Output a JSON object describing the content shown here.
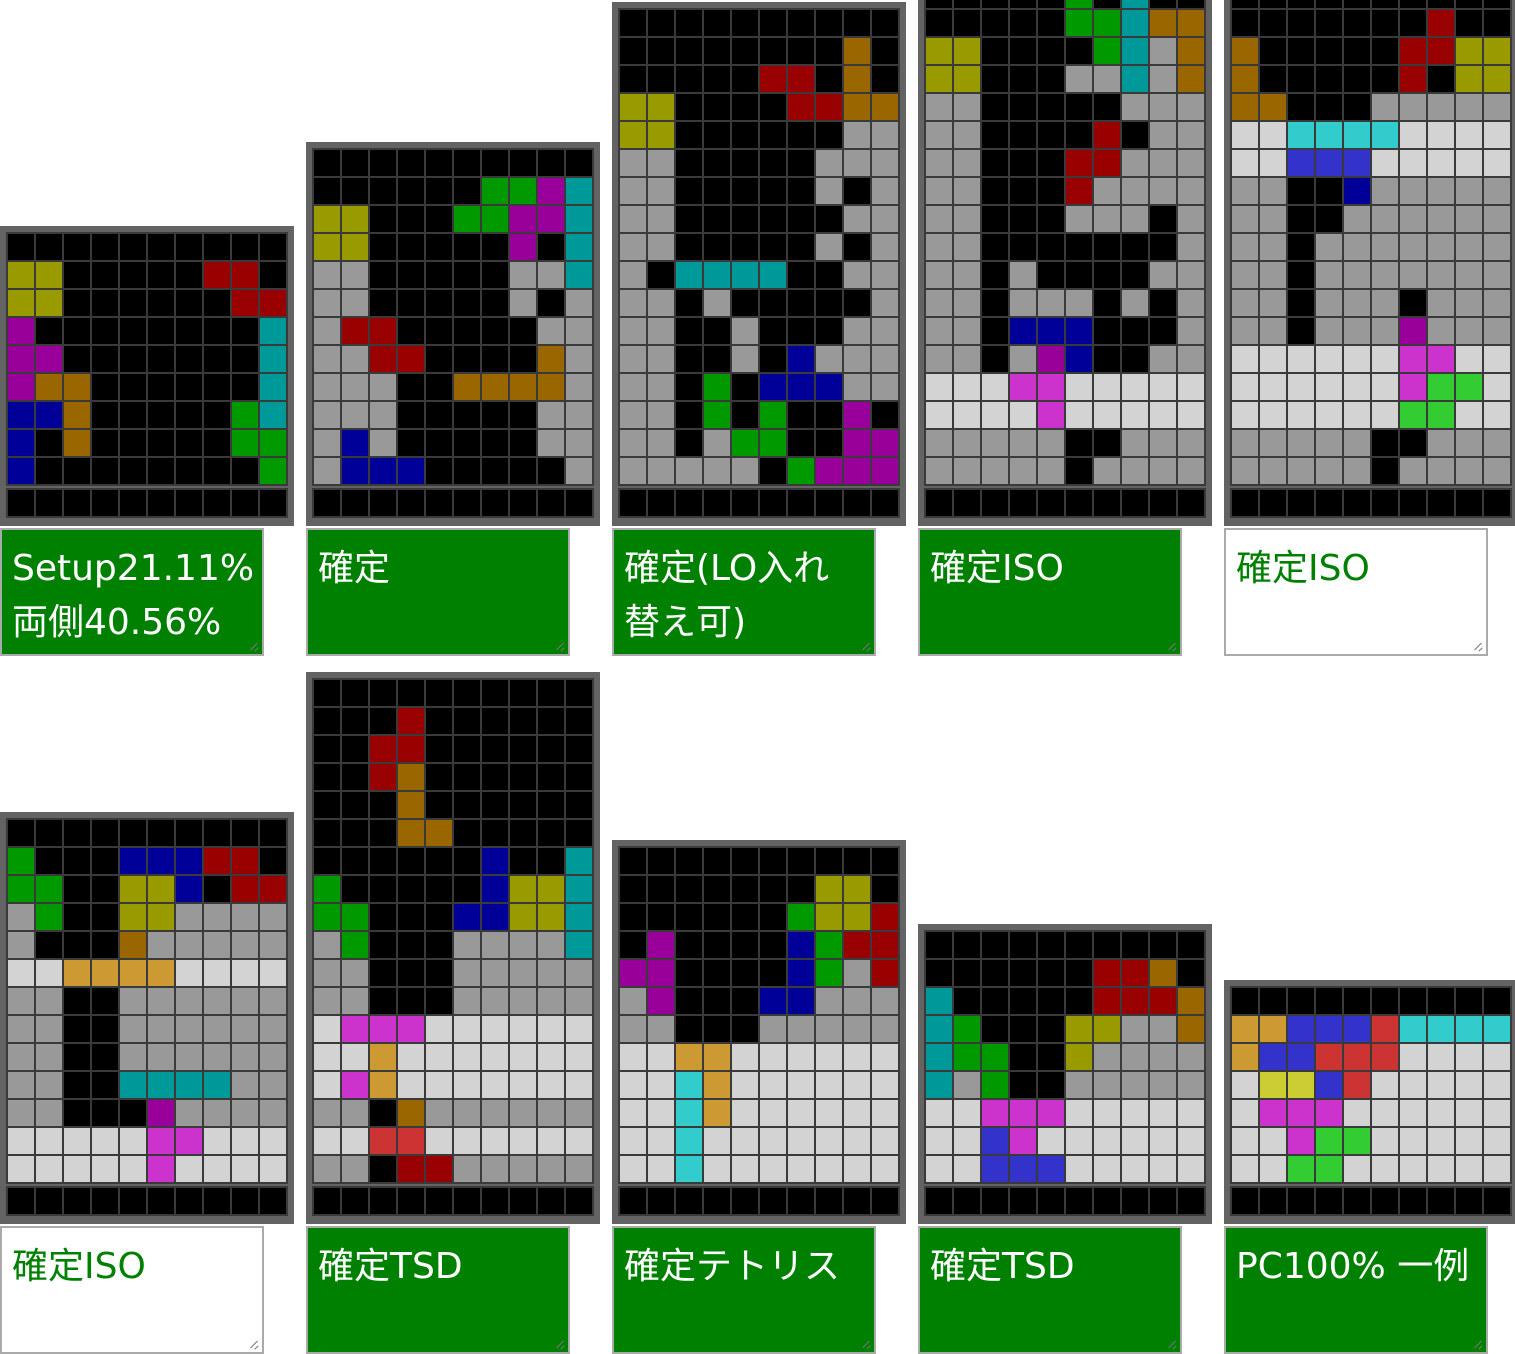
{
  "colors": {
    "_": "#000000",
    "G": "#999999",
    "W": "#d3d3d3",
    "Y": "#999900",
    "R": "#990000",
    "C": "#009999",
    "P": "#990099",
    "B": "#000099",
    "O": "#996600",
    "N": "#009900",
    "m": "#cc33cc",
    "b": "#3333cc",
    "o": "#cc9933",
    "c": "#33cccc",
    "y": "#cccc33",
    "r": "#cc3333",
    "n": "#33cc33"
  },
  "cells": [
    {
      "comment": "Setup21.11%\n両側40.56%",
      "style": "green",
      "rows": [
        "__________",
        "YY_____RR_",
        "YY______RR",
        "P________C",
        "PP_______C",
        "POO______C",
        "BBO_____NC",
        "B_O_____NN",
        "B________N"
      ]
    },
    {
      "comment": "確定",
      "style": "green",
      "rows": [
        "__________",
        "______NNPC",
        "YY___NNPPC",
        "YY_____P_C",
        "GG_____GGC",
        "GG_____G_G",
        "GRR_____GG",
        "GGRR____OG",
        "GGG__OOOOG",
        "GGG_____GG",
        "GBG_____GG",
        "GBBB_____G"
      ]
    },
    {
      "comment": "確定(LO入れ\n替え可)",
      "style": "green",
      "rows": [
        "__________",
        "________O_",
        "_____RR_O_",
        "YY____RROO",
        "YY______GG",
        "GG_____GGG",
        "GG_____G_G",
        "GG______GG",
        "GG_____G_G",
        "G_CCCC__GG",
        "GG_G_____G",
        "GG__G___GG",
        "GG__G_BGGG",
        "GG_N_BBBGG",
        "GG_N_N__P_",
        "GG_GNN__PP",
        "GGGGG_NPPP"
      ]
    },
    {
      "comment": "確定ISO",
      "style": "green",
      "rows": [
        "__________",
        "_____N_C__",
        "_____NNCOO",
        "YY____NCGO",
        "YY___GGCGO",
        "GG_____GGG",
        "GG____R_GG",
        "GG___RRGGG",
        "GG___RGGGG",
        "GG___GGG_G",
        "GG_______G",
        "GG_G____GG",
        "GG_GGG_G_G",
        "GG_BBB___G",
        "GG_GPB__GG",
        "WWWmmWWWWW",
        "WWWWmWWWWW",
        "GGGGG__GGG",
        "GGGGG_GGGG"
      ]
    },
    {
      "comment": "確定ISO",
      "style": "white",
      "rows": [
        "__________",
        "_______R__",
        "O_____RRYY",
        "O_____R_YY",
        "OO___GGGGG",
        "WWccccWWWW",
        "WWbbbWWWWW",
        "GG__BGGGGG",
        "GG__GGGGGG",
        "GG_GGGGGGG",
        "GG_GGGGGGG",
        "GG_GGG_GGG",
        "GG_GGGPGGG",
        "WWWWWWmmWW",
        "WWWWWWmnnW",
        "WWWWWWnnWW",
        "GGGGG__GGG",
        "GGGGG_GGGG"
      ]
    },
    {
      "comment": "確定ISO",
      "style": "white",
      "rows": [
        "__________",
        "N___BBBRR_",
        "NN__YYB_RR",
        "GN__YYGGGG",
        "G___OGGGGG",
        "WWooooWWWW",
        "GG__GGGGGG",
        "GG__GGGGGG",
        "GG__GGGGGG",
        "GG__CCCCGG",
        "GG___PGGGG",
        "WWWWWmmWWW",
        "WWWWWmWWWW"
      ]
    },
    {
      "comment": "確定TSD",
      "style": "green",
      "rows": [
        "__________",
        "___R______",
        "__RR______",
        "__RO______",
        "___O______",
        "___OO_____",
        "______B__C",
        "N_____BYYC",
        "NN___BBYYC",
        "GN___GGGGC",
        "GG___GGGGG",
        "GG___GGGGG",
        "WmmmWWWWWW",
        "WWoWWWWWWW",
        "WmoWWWWWWW",
        "GG_OGGGGGG",
        "WWrrWWWWWW",
        "GG_RRGGGGG"
      ]
    },
    {
      "comment": "確定テトリス",
      "style": "green",
      "rows": [
        "__________",
        "_______YY_",
        "______NYYR",
        "_P____BNRR",
        "PP____BNGR",
        "GP___BBGGG",
        "GG___GGGGG",
        "WWooWWWWWW",
        "WWcoWWWWWW",
        "WWcoWWWWWW",
        "WWcWWWWWWW",
        "WWcWWWWWWW"
      ]
    },
    {
      "comment": "確定TSD",
      "style": "green",
      "rows": [
        "__________",
        "______RRO_",
        "C_____RRRO",
        "CN___YYGGO",
        "CNN__YGGGG",
        "CGN__GGGGG",
        "WWmmmWWWWW",
        "WWbmWWWWWW",
        "WWbbbWWWWW"
      ]
    },
    {
      "comment": "PC100% 一例",
      "style": "green",
      "rows": [
        "__________",
        "oobbbrcccc",
        "obbrrrWWWW",
        "WyybrWWWWW",
        "WmmmWWWWWW",
        "WWmnnWWWWW",
        "WWnnWWWWWW"
      ]
    }
  ]
}
